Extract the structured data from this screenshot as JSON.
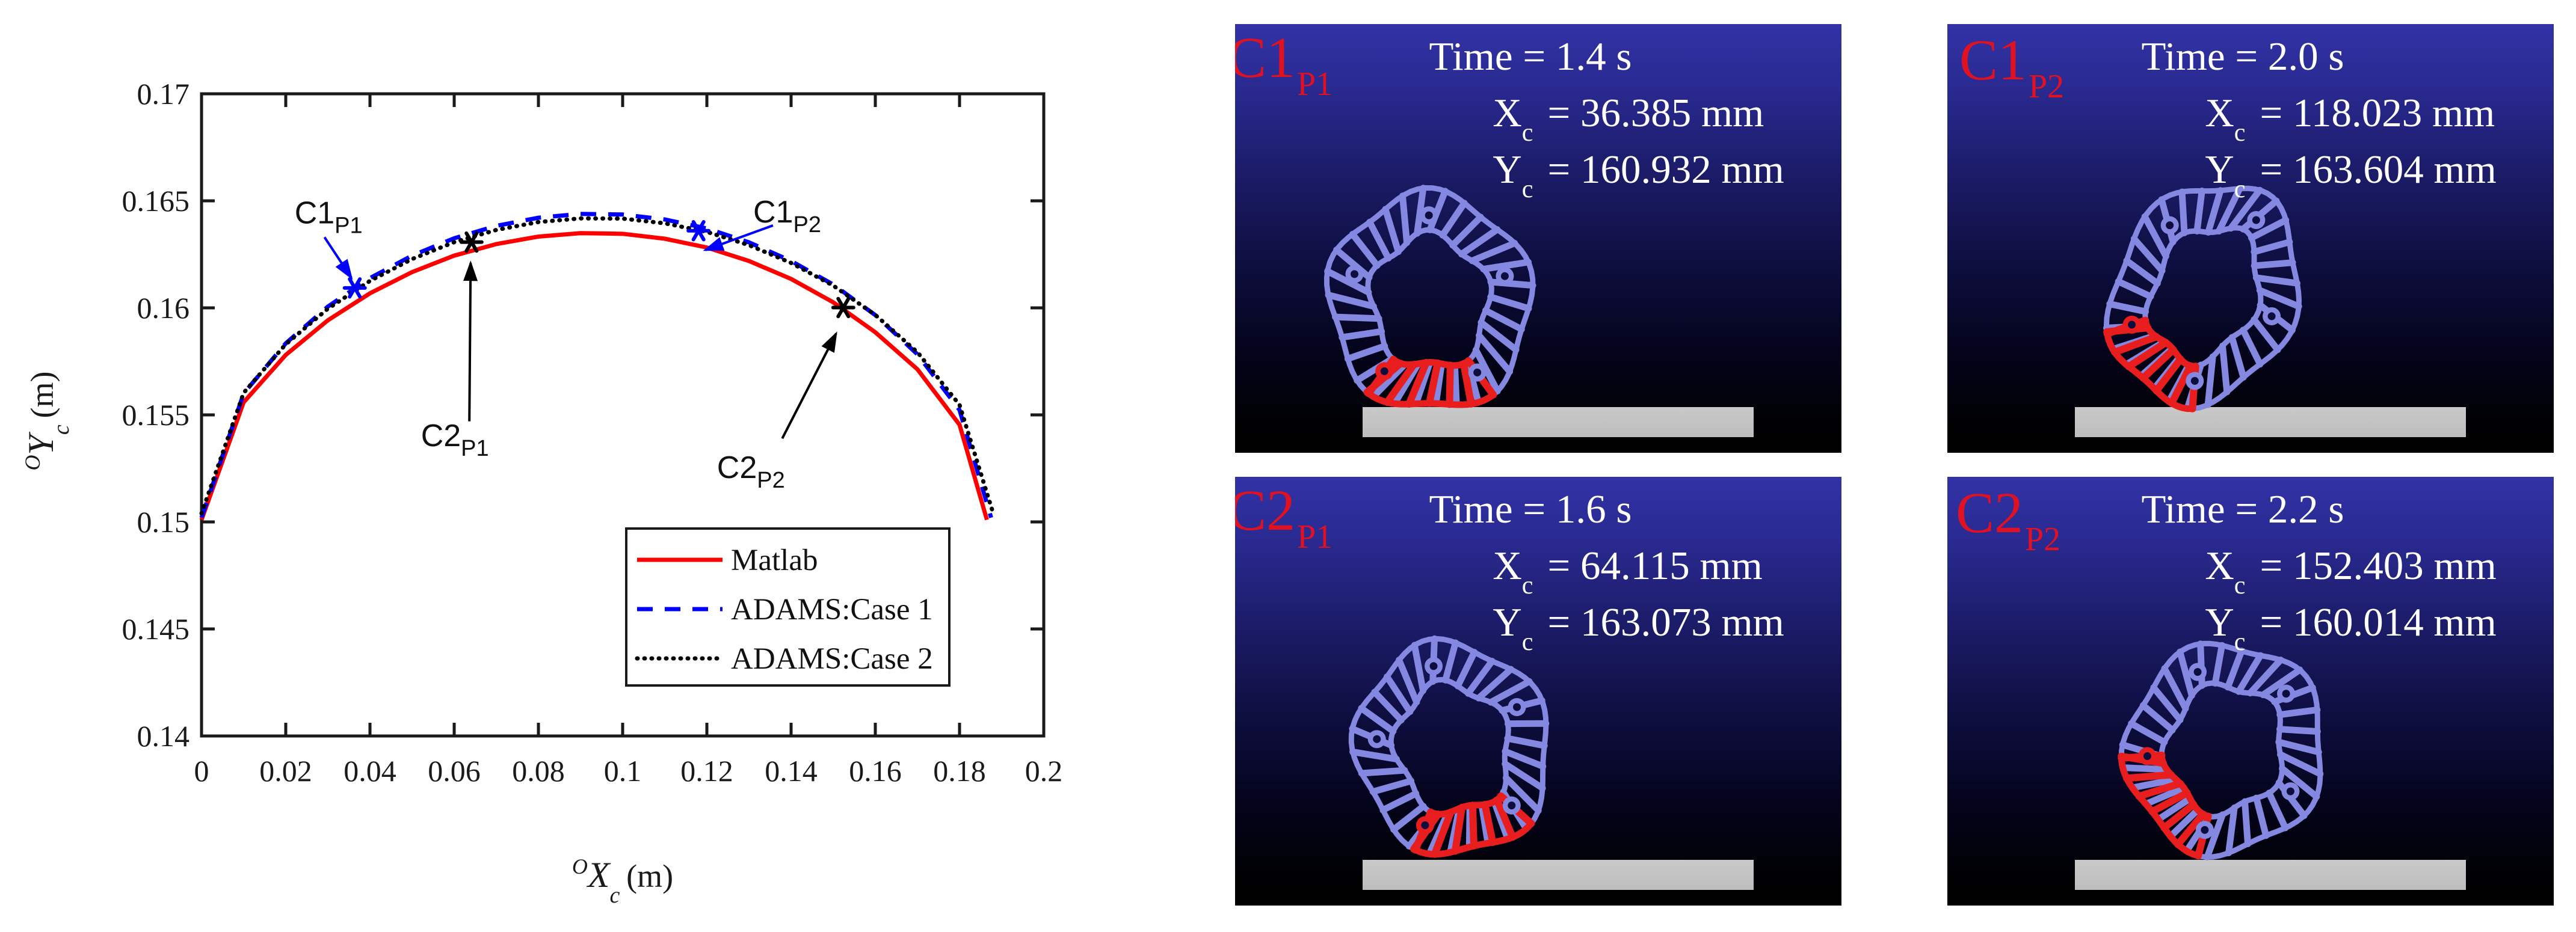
{
  "figure": {
    "background": "#ffffff"
  },
  "chart": {
    "x_axis_label": {
      "sup": "O",
      "main": "X",
      "sub": "c",
      "unit": "(m)"
    },
    "y_axis_label": {
      "sup": "O",
      "main": "Y",
      "sub": "c",
      "unit": "(m)"
    },
    "axis_color": "#1a1a1a",
    "tick_label_color": "#1a1a1a"
  },
  "chart_data": {
    "type": "line",
    "title": "",
    "xlabel": "OXc (m)",
    "ylabel": "OYc (m)",
    "xlim": [
      0,
      0.2
    ],
    "ylim": [
      0.14,
      0.17
    ],
    "grid": false,
    "legend_position": "lower right inset box",
    "x_tick_values": [
      0,
      0.02,
      0.04,
      0.06,
      0.08,
      0.1,
      0.12,
      0.14,
      0.16,
      0.18,
      0.2
    ],
    "x_tick_labels": [
      "0",
      "0.02",
      "0.04",
      "0.06",
      "0.08",
      "0.1",
      "0.12",
      "0.14",
      "0.16",
      "0.18",
      "0.2"
    ],
    "y_tick_values": [
      0.14,
      0.145,
      0.15,
      0.155,
      0.16,
      0.165,
      0.17
    ],
    "y_tick_labels": [
      "0.14",
      "0.145",
      "0.15",
      "0.155",
      "0.16",
      "0.165",
      "0.17"
    ],
    "series": [
      {
        "name": "Matlab",
        "color": "#ff0000",
        "dash": "solid",
        "x": [
          0,
          0.01,
          0.02,
          0.03,
          0.04,
          0.05,
          0.06,
          0.07,
          0.08,
          0.09,
          0.1,
          0.11,
          0.12,
          0.13,
          0.14,
          0.15,
          0.16,
          0.17,
          0.18,
          0.1865
        ],
        "y": [
          0.1501,
          0.15559,
          0.1578,
          0.15942,
          0.16068,
          0.16167,
          0.16244,
          0.16298,
          0.16333,
          0.16349,
          0.16346,
          0.16323,
          0.16282,
          0.16219,
          0.16135,
          0.16026,
          0.15886,
          0.15713,
          0.15454,
          0.1501
        ]
      },
      {
        "name": "ADAMS:Case 1",
        "color": "#0000ff",
        "dash": "dashed",
        "x": [
          0,
          0.01,
          0.02,
          0.03,
          0.04,
          0.05,
          0.06,
          0.07,
          0.08,
          0.09,
          0.1,
          0.11,
          0.12,
          0.13,
          0.14,
          0.15,
          0.16,
          0.17,
          0.18,
          0.1875
        ],
        "y": [
          0.1502,
          0.156,
          0.15834,
          0.16006,
          0.16139,
          0.16244,
          0.16325,
          0.16383,
          0.16421,
          0.16439,
          0.16436,
          0.16413,
          0.16371,
          0.16306,
          0.16219,
          0.16109,
          0.15966,
          0.15783,
          0.15523,
          0.1502
        ]
      },
      {
        "name": "ADAMS:Case 2",
        "color": "#000000",
        "dash": "dotted",
        "x": [
          0,
          0.01,
          0.02,
          0.03,
          0.04,
          0.05,
          0.06,
          0.07,
          0.08,
          0.09,
          0.1,
          0.11,
          0.12,
          0.13,
          0.14,
          0.15,
          0.16,
          0.17,
          0.18,
          0.188
        ],
        "y": [
          0.1504,
          0.15603,
          0.1583,
          0.15996,
          0.16126,
          0.16228,
          0.16307,
          0.16364,
          0.16401,
          0.16418,
          0.16417,
          0.16395,
          0.16355,
          0.16293,
          0.1621,
          0.16104,
          0.15967,
          0.15793,
          0.15547,
          0.1504
        ]
      }
    ],
    "annotations": [
      {
        "label": "C1",
        "sub": "P1",
        "color": "#0000ff",
        "x": 0.036385,
        "y": 0.160932,
        "text": [
          0.0221,
          0.16394
        ],
        "arrow": [
          0.0292,
          0.1633,
          0.0356,
          0.1614
        ]
      },
      {
        "label": "C2",
        "sub": "P1",
        "color": "#000000",
        "x": 0.064115,
        "y": 0.163073,
        "text": [
          0.0521,
          0.15354
        ],
        "arrow": [
          0.0636,
          0.1547,
          0.0639,
          0.1621
        ]
      },
      {
        "label": "C1",
        "sub": "P2",
        "color": "#0000ff",
        "x": 0.118023,
        "y": 0.163604,
        "text": [
          0.131,
          0.16399
        ],
        "arrow": [
          0.1357,
          0.16385,
          0.1196,
          0.1627
        ]
      },
      {
        "label": "C2",
        "sub": "P2",
        "color": "#000000",
        "x": 0.152403,
        "y": 0.160014,
        "text": [
          0.1224,
          0.15205
        ],
        "arrow": [
          0.1379,
          0.1539,
          0.1507,
          0.1588
        ]
      }
    ]
  },
  "panel_style": {
    "bg_top": "#3232a6",
    "bg_bottom": "#000000",
    "wheel_blue": "#8588e0",
    "wheel_red": "#e81e1e",
    "joint_hole": "#0d0d3e",
    "ground": "#c9c9c9",
    "label_red": "#e01222",
    "info_text": "#ffffff"
  },
  "panels": [
    {
      "name": "C1P1",
      "label": "C1",
      "label_sub": "P1",
      "time_text": "Time = 1.4 s",
      "x_label": "X",
      "coord_sub": "c",
      "x_rest": "= 36.385 mm",
      "y_label": "Y",
      "y_rest": "= 160.932 mm"
    },
    {
      "name": "C1P2",
      "label": "C1",
      "label_sub": "P2",
      "time_text": "Time = 2.0 s",
      "x_label": "X",
      "coord_sub": "c",
      "x_rest": "= 118.023 mm",
      "y_label": "Y",
      "y_rest": "= 163.604 mm"
    },
    {
      "name": "C2P1",
      "label": "C2",
      "label_sub": "P1",
      "time_text": "Time = 1.6 s",
      "x_label": "X",
      "coord_sub": "c",
      "x_rest": "= 64.115 mm",
      "y_label": "Y",
      "y_rest": "= 163.073 mm"
    },
    {
      "name": "C2P2",
      "label": "C2",
      "label_sub": "P2",
      "time_text": "Time = 2.2 s",
      "x_label": "X",
      "coord_sub": "c",
      "x_rest": "= 152.403 mm",
      "y_label": "Y",
      "y_rest": "= 160.014 mm"
    }
  ]
}
